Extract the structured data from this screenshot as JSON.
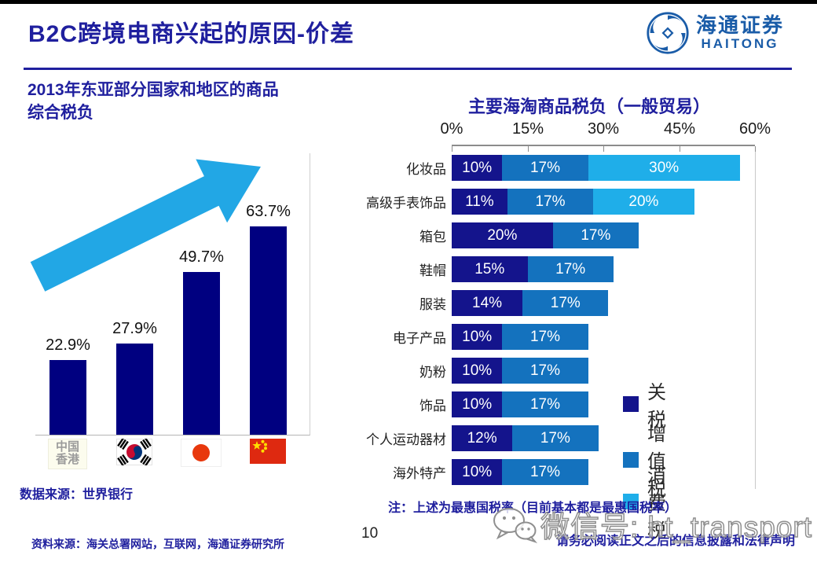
{
  "slide": {
    "title": "B2C跨境电商兴起的原因-价差",
    "page_number": "10",
    "footer_source": "资料来源：海关总署网站，互联网，海通证券研究所",
    "footer_disclaimer": "请务必阅读正文之后的信息披露和法律声明",
    "watermark": "微信号: ht_transport"
  },
  "logo": {
    "name_cn": "海通证券",
    "name_en": "HAITONG",
    "color": "#1A5CA8"
  },
  "colors": {
    "title_blue": "#1F1F9E",
    "arrow_cyan": "#22A7E5",
    "left_bar_navy": "#000080",
    "tariff_navy": "#14148C",
    "vat_blue": "#1472BE",
    "consumption_cyan": "#1FAEE9",
    "axis_gray": "#8C8C8C",
    "logo_blue": "#1A5CA8"
  },
  "chart_data": [
    {
      "type": "bar",
      "title": "2013年东亚部分国家和地区的商品综合税负",
      "categories": [
        "中国香港",
        "韩国",
        "日本",
        "中国"
      ],
      "values": [
        22.9,
        27.9,
        49.7,
        63.7
      ],
      "value_labels": [
        "22.9%",
        "27.9%",
        "49.7%",
        "63.7%"
      ],
      "unit": "%",
      "ylim": [
        0,
        70
      ],
      "grid": false,
      "bar_color": "#000080",
      "annotation": "upward-trend-arrow",
      "source": "数据来源：世界银行"
    },
    {
      "type": "bar",
      "orientation": "horizontal",
      "stacked": true,
      "title": "主要海淘商品税负（一般贸易）",
      "categories": [
        "化妆品",
        "高级手表饰品",
        "箱包",
        "鞋帽",
        "服装",
        "电子产品",
        "奶粉",
        "饰品",
        "个人运动器材",
        "海外特产"
      ],
      "series": [
        {
          "name": "关税",
          "color": "#14148C",
          "values": [
            10,
            11,
            20,
            15,
            14,
            10,
            10,
            10,
            12,
            10
          ]
        },
        {
          "name": "增值税",
          "color": "#1472BE",
          "values": [
            17,
            17,
            17,
            17,
            17,
            17,
            17,
            17,
            17,
            17
          ]
        },
        {
          "name": "消费税",
          "color": "#1FAEE9",
          "values": [
            30,
            20,
            0,
            0,
            0,
            0,
            0,
            0,
            0,
            0
          ]
        }
      ],
      "x_ticks": [
        "0%",
        "15%",
        "30%",
        "45%",
        "60%"
      ],
      "xlim": [
        0,
        60
      ],
      "legend_position": "right",
      "legend": [
        "关税",
        "增值税",
        "消费税"
      ],
      "note": "注：上述为最惠国税率（目前基本都是最惠国税率）"
    }
  ]
}
